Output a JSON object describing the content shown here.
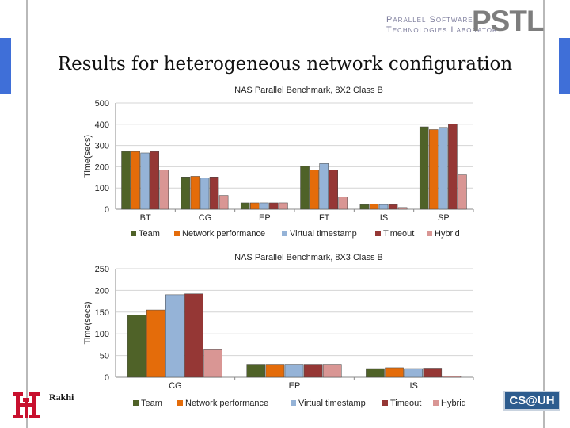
{
  "slide": {
    "title": "Results for heterogeneous network configuration",
    "author": "Rakhi",
    "lab_line1": "Parallel Software",
    "lab_line2": "Technologies Laboratory",
    "lab_logo": "PSTL",
    "dept_logo": "CS@UH"
  },
  "colors": {
    "Team": "#4f6228",
    "Network performance": "#e46c0a",
    "Virtual timestamp": "#95b3d7",
    "Timeout": "#953735",
    "Hybrid": "#d99694",
    "accent_blue": "#3f6fd8"
  },
  "chart_data": [
    {
      "type": "bar",
      "title": "NAS Parallel Benchmark, 8X2 Class B",
      "ylabel": "Time(secs)",
      "xlabel": "",
      "ylim": [
        0,
        500
      ],
      "yticks": [
        0,
        100,
        200,
        300,
        400,
        500
      ],
      "grid": true,
      "legend_position": "bottom",
      "categories": [
        "BT",
        "CG",
        "EP",
        "FT",
        "IS",
        "SP"
      ],
      "series": [
        {
          "name": "Team",
          "values": [
            272,
            152,
            30,
            202,
            22,
            388
          ]
        },
        {
          "name": "Network performance",
          "values": [
            272,
            155,
            30,
            185,
            25,
            375
          ]
        },
        {
          "name": "Virtual timestamp",
          "values": [
            265,
            148,
            30,
            215,
            22,
            385
          ]
        },
        {
          "name": "Timeout",
          "values": [
            272,
            152,
            30,
            185,
            22,
            402
          ]
        },
        {
          "name": "Hybrid",
          "values": [
            185,
            65,
            30,
            58,
            8,
            162
          ]
        }
      ]
    },
    {
      "type": "bar",
      "title": "NAS Parallel Benchmark, 8X3 Class B",
      "ylabel": "Time(secs)",
      "xlabel": "",
      "ylim": [
        0,
        250
      ],
      "yticks": [
        0,
        50,
        100,
        150,
        200,
        250
      ],
      "grid": true,
      "legend_position": "bottom",
      "categories": [
        "CG",
        "EP",
        "IS"
      ],
      "series": [
        {
          "name": "Team",
          "values": [
            143,
            30,
            20
          ]
        },
        {
          "name": "Network performance",
          "values": [
            155,
            30,
            22
          ]
        },
        {
          "name": "Virtual timestamp",
          "values": [
            190,
            30,
            20
          ]
        },
        {
          "name": "Timeout",
          "values": [
            192,
            30,
            21
          ]
        },
        {
          "name": "Hybrid",
          "values": [
            65,
            30,
            3
          ]
        }
      ]
    }
  ]
}
